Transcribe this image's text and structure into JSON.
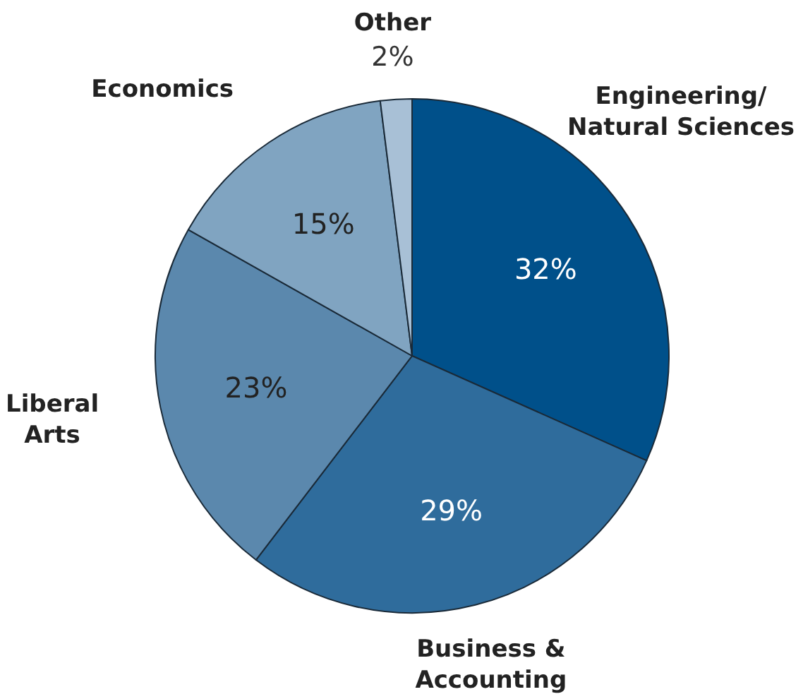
{
  "chart_data": {
    "type": "pie",
    "categories": [
      "Engineering/\nNatural Sciences",
      "Business &\nAccounting",
      "Liberal\nArts",
      "Economics",
      "Other"
    ],
    "values": [
      32,
      29,
      23,
      15,
      2
    ],
    "value_labels": [
      "32%",
      "29%",
      "23%",
      "15%",
      "2%"
    ],
    "colors": [
      "#00508a",
      "#2f6c9c",
      "#5b88ad",
      "#80a4c1",
      "#a8c0d6"
    ]
  }
}
